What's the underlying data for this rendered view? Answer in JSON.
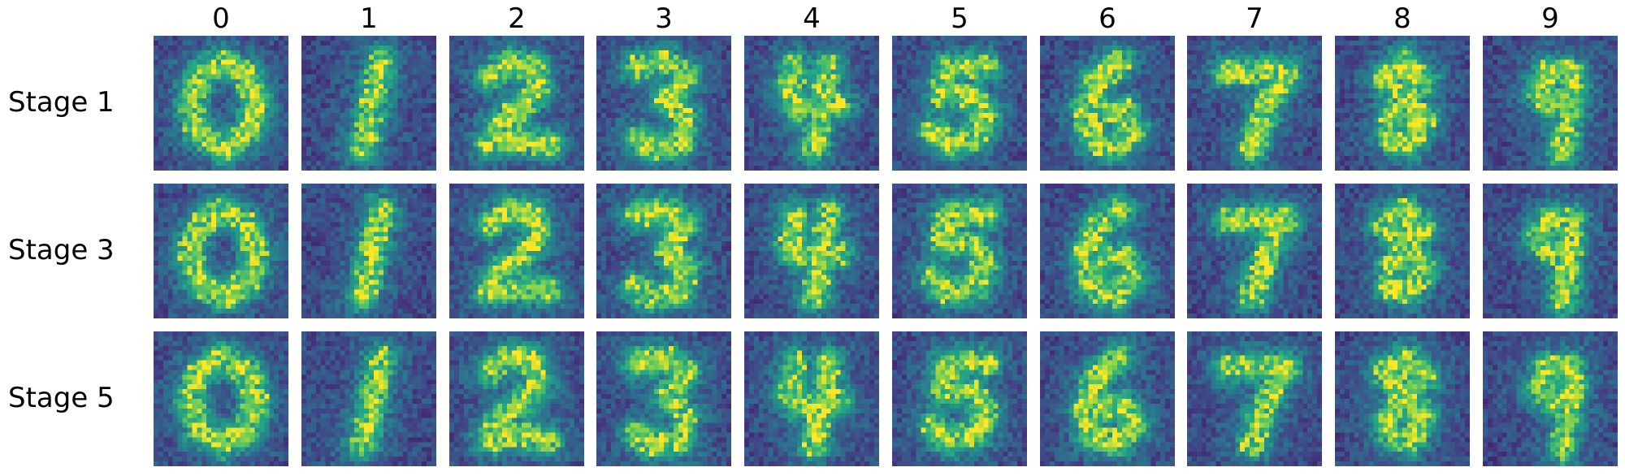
{
  "figure": {
    "column_labels": [
      "0",
      "1",
      "2",
      "3",
      "4",
      "5",
      "6",
      "7",
      "8",
      "9"
    ],
    "row_labels": [
      "Stage 1",
      "Stage 3",
      "Stage 5"
    ],
    "colormap": "viridis",
    "colors": {
      "background_low": "#440154",
      "background_mid": "#3b528b",
      "mid": "#21918c",
      "high": "#5ec962",
      "peak": "#fde725"
    }
  }
}
